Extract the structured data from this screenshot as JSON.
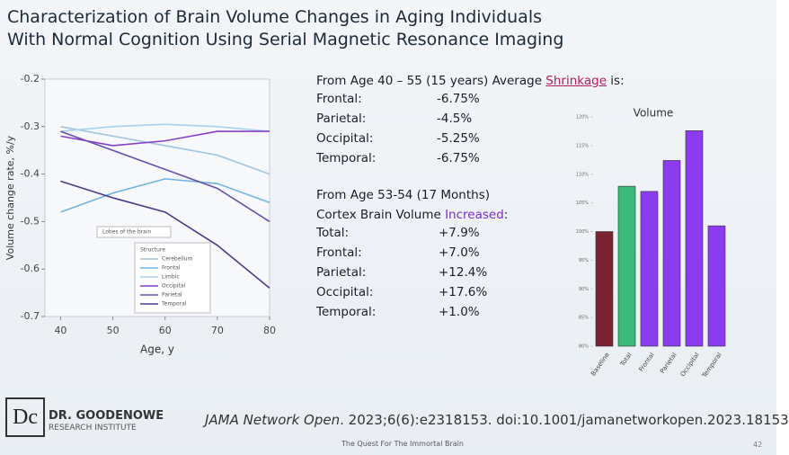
{
  "slide": {
    "title": [
      "Characterization of Brain Volume Changes in Aging Individuals",
      "With Normal Cognition Using Serial Magnetic Resonance Imaging"
    ],
    "shrinkage": {
      "heading": [
        "From Age 40 – 55 (15 years) Average ",
        "Shrinkage",
        " is:"
      ],
      "rows": [
        [
          "Frontal:",
          "-6.75%"
        ],
        [
          "Parietal:",
          "-4.5%"
        ],
        [
          "Occipital:",
          "-5.25%"
        ],
        [
          "Temporal:",
          "-6.75%"
        ]
      ]
    },
    "increase": {
      "heading": "From Age 53-54 (17 Months)",
      "subheading": [
        "Cortex Brain Volume ",
        "Increased",
        ":"
      ],
      "rows": [
        [
          "Total:",
          "+7.9%"
        ],
        [
          "Frontal:",
          "+7.0%"
        ],
        [
          "Parietal:",
          "+12.4%"
        ],
        [
          "Occipital:",
          "+17.6%"
        ],
        [
          "Temporal:",
          "+1.0%"
        ]
      ]
    },
    "logo": {
      "mark": "Dc",
      "name": "DR. GOODENOWE",
      "sub": "RESEARCH INSTITUTE"
    },
    "citation": {
      "journal": "JAMA Network Open",
      "rest": ". 2023;6(6):e2318153. doi:10.1001/jamanetworkopen.2023.18153"
    },
    "footer": "The Quest For The Immortal Brain",
    "page": "42"
  },
  "chart_data": [
    {
      "type": "line",
      "x_label": "Age, y",
      "y_label": "Volume change rate, %/y",
      "annotation": "Lobes of the brain",
      "legend_title": "Structure",
      "x": [
        40,
        50,
        60,
        70,
        80
      ],
      "xlim": [
        37,
        80
      ],
      "xticks": [
        40,
        50,
        60,
        70,
        80
      ],
      "ylim": [
        -0.7,
        -0.2
      ],
      "yticks": [
        -0.7,
        -0.6,
        -0.5,
        -0.4,
        -0.3,
        -0.2
      ],
      "series": [
        {
          "name": "Cerebellum",
          "color": "#9fc6de",
          "values": [
            -0.3,
            -0.32,
            -0.34,
            -0.36,
            -0.4
          ]
        },
        {
          "name": "Frontal",
          "color": "#6fb4e0",
          "values": [
            -0.48,
            -0.44,
            -0.41,
            -0.42,
            -0.46
          ]
        },
        {
          "name": "Limbic",
          "color": "#a6d2ec",
          "values": [
            -0.31,
            -0.3,
            -0.295,
            -0.3,
            -0.31
          ]
        },
        {
          "name": "Occipital",
          "color": "#8a3fc8",
          "values": [
            -0.32,
            -0.34,
            -0.33,
            -0.31,
            -0.31
          ]
        },
        {
          "name": "Parietal",
          "color": "#6a4fa8",
          "values": [
            -0.31,
            -0.35,
            -0.39,
            -0.43,
            -0.5
          ]
        },
        {
          "name": "Temporal",
          "color": "#4b3a8a",
          "values": [
            -0.415,
            -0.45,
            -0.48,
            -0.55,
            -0.64
          ]
        }
      ]
    },
    {
      "type": "bar",
      "title": "Volume",
      "categories": [
        "Baseline",
        "Total",
        "Frontal",
        "Parietal",
        "Occipital",
        "Temporal"
      ],
      "values": [
        100,
        107.9,
        107,
        112.4,
        117.6,
        101
      ],
      "colors": [
        "#7a2230",
        "#3cba7c",
        "#8b3cf0",
        "#8b3cf0",
        "#8b3cf0",
        "#8b3cf0"
      ],
      "ylim": [
        80,
        120
      ],
      "yticks": [
        {
          "value": 80,
          "label": "80%"
        },
        {
          "value": 85,
          "label": "85%"
        },
        {
          "value": 90,
          "label": "90%"
        },
        {
          "value": 95,
          "label": "95%"
        },
        {
          "value": 100,
          "label": "100%"
        },
        {
          "value": 105,
          "label": "105%"
        },
        {
          "value": 110,
          "label": "110%"
        },
        {
          "value": 115,
          "label": "115%"
        },
        {
          "value": 120,
          "label": "120%"
        }
      ]
    }
  ]
}
